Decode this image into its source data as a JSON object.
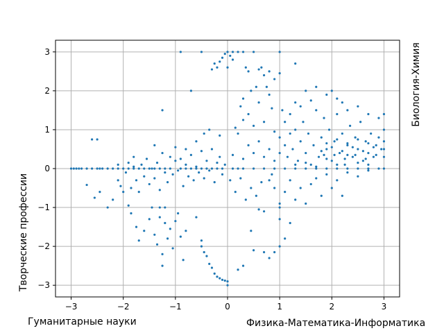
{
  "chart_data": {
    "type": "scatter",
    "title": "",
    "xlim": [
      -3.3,
      3.3
    ],
    "ylim": [
      -3.3,
      3.3
    ],
    "x_ticks": [
      -3,
      -2,
      -1,
      0,
      1,
      2,
      3
    ],
    "y_ticks": [
      -3,
      -2,
      -1,
      0,
      1,
      2,
      3
    ],
    "x_tick_labels": [
      "−3",
      "−2",
      "−1",
      "0",
      "1",
      "2",
      "3"
    ],
    "y_tick_labels": [
      "−3",
      "−2",
      "−1",
      "0",
      "1",
      "2",
      "3"
    ],
    "grid": true,
    "marker_color": "#1f77b4",
    "grid_color": "#b0b0b0",
    "labels": {
      "left": "Творческие профессии",
      "right": "Биология-Химия",
      "bottom_left": "Гуманитарные науки",
      "bottom_right": "Физика-Математика-Информатика"
    },
    "series": [
      {
        "points": [
          [
            -3.0,
            0.0
          ],
          [
            -2.95,
            0.0
          ],
          [
            -2.9,
            0.0
          ],
          [
            -2.85,
            0.0
          ],
          [
            -2.8,
            0.0
          ],
          [
            -2.7,
            0.0
          ],
          [
            -2.6,
            0.0
          ],
          [
            -2.5,
            0.0
          ],
          [
            -2.45,
            0.0
          ],
          [
            -2.4,
            0.0
          ],
          [
            -2.3,
            0.0
          ],
          [
            -2.2,
            0.0
          ],
          [
            -2.1,
            0.0
          ],
          [
            -2.0,
            0.0
          ],
          [
            -1.9,
            0.0
          ],
          [
            -1.8,
            0.0
          ],
          [
            -1.7,
            0.0
          ],
          [
            -1.6,
            0.0
          ],
          [
            -1.5,
            0.0
          ],
          [
            -1.4,
            0.0
          ],
          [
            -1.3,
            0.0
          ],
          [
            -1.2,
            0.0
          ],
          [
            -1.1,
            0.0
          ],
          [
            -0.9,
            0.0
          ],
          [
            -0.8,
            0.0
          ],
          [
            -0.7,
            0.0
          ],
          [
            -0.6,
            0.0
          ],
          [
            -0.5,
            0.0
          ],
          [
            -0.4,
            0.0
          ],
          [
            -0.3,
            0.0
          ],
          [
            -0.2,
            0.0
          ],
          [
            -0.1,
            0.0
          ],
          [
            0.1,
            0.0
          ],
          [
            0.2,
            0.0
          ],
          [
            0.3,
            0.0
          ],
          [
            0.5,
            0.0
          ],
          [
            0.7,
            0.0
          ],
          [
            0.9,
            0.0
          ],
          [
            1.1,
            0.0
          ],
          [
            1.3,
            0.0
          ],
          [
            1.5,
            0.0
          ],
          [
            1.7,
            0.0
          ],
          [
            1.9,
            0.0
          ],
          [
            2.1,
            0.0
          ],
          [
            2.3,
            0.0
          ],
          [
            2.5,
            0.0
          ],
          [
            2.7,
            0.0
          ],
          [
            2.9,
            0.0
          ],
          [
            3.0,
            0.0
          ],
          [
            -2.7,
            -0.42
          ],
          [
            -2.5,
            0.75
          ],
          [
            -2.55,
            -0.75
          ],
          [
            -2.45,
            -0.6
          ],
          [
            -2.3,
            -1.0
          ],
          [
            -2.2,
            -0.8
          ],
          [
            -2.1,
            -0.3
          ],
          [
            -2.05,
            -0.45
          ],
          [
            -1.95,
            -0.1
          ],
          [
            -1.9,
            0.15
          ],
          [
            -1.85,
            -0.5
          ],
          [
            -1.8,
            0.05
          ],
          [
            -1.75,
            -0.3
          ],
          [
            -1.7,
            -0.6
          ],
          [
            -1.65,
            0.1
          ],
          [
            -1.6,
            -0.2
          ],
          [
            -1.55,
            0.25
          ],
          [
            -1.5,
            -0.4
          ],
          [
            -1.45,
            0.0
          ],
          [
            -1.4,
            -0.25
          ],
          [
            -1.35,
            0.15
          ],
          [
            -1.3,
            -0.55
          ],
          [
            -1.25,
            0.4
          ],
          [
            -1.2,
            -0.1
          ],
          [
            -1.15,
            -0.35
          ],
          [
            -1.1,
            0.3
          ],
          [
            -1.05,
            -0.15
          ],
          [
            -1.0,
            0.2
          ],
          [
            -0.95,
            -0.05
          ],
          [
            -0.9,
            0.25
          ],
          [
            -0.85,
            -0.45
          ],
          [
            -0.8,
            0.1
          ],
          [
            -0.75,
            -0.2
          ],
          [
            -0.7,
            0.35
          ],
          [
            -0.65,
            -0.3
          ],
          [
            -0.6,
            0.05
          ],
          [
            -0.55,
            -0.1
          ],
          [
            -0.5,
            0.45
          ],
          [
            -0.45,
            -0.25
          ],
          [
            -0.4,
            0.2
          ],
          [
            -0.35,
            -0.05
          ],
          [
            -0.3,
            0.5
          ],
          [
            -0.25,
            -0.35
          ],
          [
            -0.2,
            0.15
          ],
          [
            -0.15,
            0.3
          ],
          [
            -0.1,
            -0.15
          ],
          [
            -0.05,
            0.1
          ],
          [
            -2.0,
            -0.6
          ],
          [
            -1.9,
            -0.95
          ],
          [
            -1.85,
            -1.15
          ],
          [
            -1.75,
            -1.5
          ],
          [
            -1.7,
            -1.85
          ],
          [
            -1.6,
            -1.6
          ],
          [
            -1.5,
            -1.3
          ],
          [
            -1.45,
            -1.0
          ],
          [
            -1.4,
            -1.7
          ],
          [
            -1.35,
            -1.95
          ],
          [
            -1.3,
            -1.25
          ],
          [
            -1.25,
            -2.2
          ],
          [
            -1.2,
            -1.4
          ],
          [
            -1.15,
            -1.8
          ],
          [
            -1.1,
            -1.55
          ],
          [
            -1.05,
            -2.05
          ],
          [
            -1.0,
            -1.35
          ],
          [
            -0.95,
            -1.15
          ],
          [
            -0.9,
            -1.75
          ],
          [
            -0.85,
            -2.35
          ],
          [
            -0.8,
            -1.6
          ],
          [
            -1.25,
            -2.5
          ],
          [
            -1.3,
            -1.0
          ],
          [
            -1.2,
            -1.0
          ],
          [
            -0.5,
            -1.85
          ],
          [
            -0.45,
            -2.15
          ],
          [
            -0.4,
            -2.25
          ],
          [
            -0.35,
            -2.45
          ],
          [
            -0.3,
            -2.55
          ],
          [
            -0.25,
            -2.7
          ],
          [
            -0.2,
            -2.78
          ],
          [
            -0.15,
            -2.82
          ],
          [
            -0.1,
            -2.86
          ],
          [
            -0.05,
            -2.88
          ],
          [
            0.0,
            -2.9
          ],
          [
            0.0,
            -3.0
          ],
          [
            -0.5,
            -2.0
          ],
          [
            -0.6,
            -1.25
          ],
          [
            0.2,
            -2.6
          ],
          [
            0.3,
            -2.5
          ],
          [
            0.5,
            -2.1
          ],
          [
            0.45,
            -1.6
          ],
          [
            0.7,
            -2.15
          ],
          [
            0.9,
            -2.15
          ],
          [
            1.0,
            -2.0
          ],
          [
            0.8,
            -2.3
          ],
          [
            1.1,
            -1.8
          ],
          [
            1.2,
            -1.4
          ],
          [
            1.0,
            -1.3
          ],
          [
            0.7,
            -1.1
          ],
          [
            0.6,
            -1.05
          ],
          [
            1.0,
            -0.9
          ],
          [
            0.9,
            -0.5
          ],
          [
            0.8,
            -0.3
          ],
          [
            -0.9,
            3.0
          ],
          [
            -0.5,
            3.0
          ],
          [
            -0.1,
            2.85
          ],
          [
            -0.05,
            2.95
          ],
          [
            0.0,
            3.0
          ],
          [
            0.05,
            2.9
          ],
          [
            0.1,
            3.0
          ],
          [
            -0.15,
            2.75
          ],
          [
            -0.2,
            2.6
          ],
          [
            -0.25,
            2.7
          ],
          [
            -0.3,
            2.55
          ],
          [
            0.0,
            2.6
          ],
          [
            0.1,
            2.8
          ],
          [
            0.2,
            3.0
          ],
          [
            0.3,
            3.0
          ],
          [
            0.5,
            3.0
          ],
          [
            0.35,
            2.6
          ],
          [
            0.4,
            2.5
          ],
          [
            0.6,
            2.55
          ],
          [
            0.7,
            2.4
          ],
          [
            0.65,
            2.6
          ],
          [
            0.8,
            2.5
          ],
          [
            0.55,
            2.1
          ],
          [
            0.45,
            2.0
          ],
          [
            -1.25,
            1.5
          ],
          [
            -0.7,
            2.0
          ],
          [
            1.0,
            3.0
          ],
          [
            1.3,
            2.7
          ],
          [
            1.0,
            2.45
          ],
          [
            0.9,
            2.3
          ],
          [
            0.75,
            2.1
          ],
          [
            0.8,
            1.9
          ],
          [
            0.3,
            1.8
          ],
          [
            0.25,
            1.6
          ],
          [
            0.4,
            1.4
          ],
          [
            0.6,
            1.7
          ],
          [
            0.85,
            1.55
          ],
          [
            0.3,
            1.25
          ],
          [
            0.5,
            1.1
          ],
          [
            0.7,
            1.2
          ],
          [
            0.9,
            0.95
          ],
          [
            0.15,
            1.05
          ],
          [
            -0.35,
            1.0
          ],
          [
            -0.15,
            0.85
          ],
          [
            -0.45,
            0.9
          ],
          [
            -0.6,
            0.7
          ],
          [
            -0.8,
            0.5
          ],
          [
            -1.0,
            0.55
          ],
          [
            -1.4,
            0.6
          ],
          [
            -1.8,
            0.3
          ],
          [
            -2.1,
            0.1
          ],
          [
            -2.6,
            0.75
          ],
          [
            0.2,
            0.9
          ],
          [
            0.4,
            0.6
          ],
          [
            0.6,
            0.7
          ],
          [
            0.8,
            0.5
          ],
          [
            1.0,
            0.8
          ],
          [
            0.1,
            0.35
          ],
          [
            0.3,
            0.25
          ],
          [
            0.5,
            0.4
          ],
          [
            0.7,
            0.3
          ],
          [
            0.9,
            0.2
          ],
          [
            0.05,
            -0.3
          ],
          [
            0.25,
            -0.25
          ],
          [
            0.45,
            -0.5
          ],
          [
            0.65,
            -0.35
          ],
          [
            0.85,
            -0.15
          ],
          [
            0.15,
            -0.6
          ],
          [
            0.35,
            -0.8
          ],
          [
            0.55,
            -0.7
          ],
          [
            1.0,
            0.4
          ],
          [
            1.1,
            0.6
          ],
          [
            1.15,
            0.3
          ],
          [
            1.2,
            0.9
          ],
          [
            1.25,
            0.5
          ],
          [
            1.3,
            1.0
          ],
          [
            1.35,
            0.2
          ],
          [
            1.4,
            0.7
          ],
          [
            1.45,
            1.2
          ],
          [
            1.5,
            0.4
          ],
          [
            1.55,
            0.9
          ],
          [
            1.6,
            0.1
          ],
          [
            1.65,
            0.6
          ],
          [
            1.7,
            1.5
          ],
          [
            1.75,
            0.3
          ],
          [
            1.8,
            0.8
          ],
          [
            1.85,
            1.3
          ],
          [
            1.9,
            0.5
          ],
          [
            1.95,
            1.0
          ],
          [
            2.0,
            0.2
          ],
          [
            2.05,
            0.7
          ],
          [
            2.1,
            1.4
          ],
          [
            2.15,
            0.4
          ],
          [
            2.2,
            0.9
          ],
          [
            2.25,
            0.1
          ],
          [
            2.3,
            0.6
          ],
          [
            2.35,
            1.1
          ],
          [
            2.4,
            0.3
          ],
          [
            2.45,
            0.8
          ],
          [
            2.5,
            0.5
          ],
          [
            2.55,
            1.2
          ],
          [
            2.6,
            0.2
          ],
          [
            2.65,
            0.7
          ],
          [
            2.7,
            0.4
          ],
          [
            2.75,
            0.9
          ],
          [
            2.8,
            0.3
          ],
          [
            2.85,
            0.6
          ],
          [
            2.9,
            0.8
          ],
          [
            2.95,
            0.5
          ],
          [
            3.0,
            0.3
          ],
          [
            3.0,
            0.5
          ],
          [
            3.0,
            0.7
          ],
          [
            3.0,
            1.0
          ],
          [
            3.0,
            1.4
          ],
          [
            2.9,
            1.3
          ],
          [
            2.7,
            1.4
          ],
          [
            2.5,
            1.6
          ],
          [
            2.3,
            1.5
          ],
          [
            2.1,
            1.8
          ],
          [
            1.9,
            1.9
          ],
          [
            1.7,
            2.1
          ],
          [
            1.5,
            2.0
          ],
          [
            1.3,
            1.7
          ],
          [
            1.2,
            1.4
          ],
          [
            2.0,
            2.0
          ],
          [
            2.2,
            1.7
          ],
          [
            1.6,
            1.75
          ],
          [
            1.4,
            1.6
          ],
          [
            1.1,
            1.2
          ],
          [
            1.05,
            1.5
          ],
          [
            1.3,
            0.1
          ],
          [
            1.5,
            0.15
          ],
          [
            1.7,
            0.05
          ],
          [
            1.9,
            0.25
          ],
          [
            2.1,
            0.1
          ],
          [
            2.3,
            0.35
          ],
          [
            2.5,
            0.15
          ],
          [
            2.7,
            0.1
          ],
          [
            1.2,
            -0.3
          ],
          [
            1.4,
            -0.5
          ],
          [
            1.6,
            -0.4
          ],
          [
            1.8,
            -0.7
          ],
          [
            2.0,
            -0.5
          ],
          [
            2.2,
            -0.7
          ],
          [
            1.5,
            -0.9
          ],
          [
            1.7,
            -0.25
          ],
          [
            1.9,
            -0.15
          ],
          [
            2.1,
            -0.3
          ],
          [
            2.3,
            -0.1
          ],
          [
            2.5,
            -0.2
          ],
          [
            1.1,
            -0.6
          ],
          [
            1.3,
            -0.8
          ],
          [
            2.7,
            -0.05
          ],
          [
            1.0,
            -1.0
          ],
          [
            1.8,
            0.45
          ],
          [
            2.0,
            0.55
          ],
          [
            2.2,
            0.45
          ],
          [
            2.4,
            0.55
          ],
          [
            2.6,
            0.45
          ],
          [
            2.8,
            0.55
          ],
          [
            1.9,
            0.65
          ],
          [
            2.1,
            0.75
          ],
          [
            2.3,
            0.65
          ],
          [
            2.5,
            0.75
          ],
          [
            2.7,
            0.65
          ],
          [
            1.85,
            0.35
          ],
          [
            2.05,
            0.35
          ],
          [
            2.25,
            0.25
          ],
          [
            2.45,
            0.35
          ],
          [
            2.65,
            0.25
          ],
          [
            2.85,
            0.35
          ]
        ]
      }
    ]
  }
}
